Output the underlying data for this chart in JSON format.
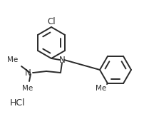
{
  "bg_color": "#ffffff",
  "line_color": "#2a2a2a",
  "lw": 1.4,
  "text_color": "#2a2a2a",
  "hcl_text": "HCl",
  "n_label": "N",
  "n2_label": "N",
  "cl_label": "Cl",
  "me_label": "Me",
  "figsize": [
    2.03,
    1.6
  ],
  "dpi": 100,
  "font_size_atom": 8.5,
  "font_size_hcl": 9,
  "font_size_me": 7.5
}
